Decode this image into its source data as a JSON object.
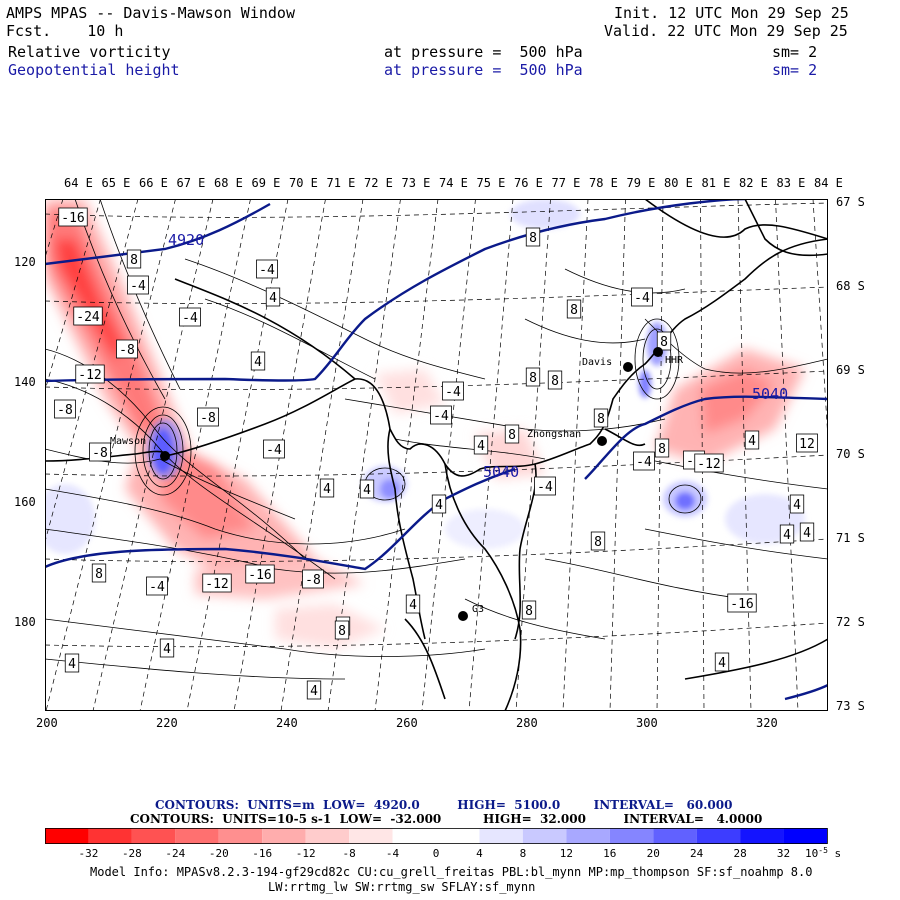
{
  "header": {
    "title": "AMPS MPAS -- Davis-Mawson Window",
    "fcst": "Fcst.    10 h",
    "init": "Init. 12 UTC Mon 29 Sep 25",
    "valid": "Valid. 22 UTC Mon 29 Sep 25",
    "field1": "Relative vorticity",
    "field1_level": "at pressure =  500 hPa",
    "field1_sm": "sm= 2",
    "field2": "Geopotential height",
    "field2_level": "at pressure =  500 hPa",
    "field2_sm": "sm= 2"
  },
  "map": {
    "lon_labels": [
      "64 E",
      "65 E",
      "66 E",
      "67 E",
      "68 E",
      "69 E",
      "70 E",
      "71 E",
      "72 E",
      "73 E",
      "74 E",
      "75 E",
      "76 E",
      "77 E",
      "78 E",
      "79 E",
      "80 E",
      "81 E",
      "82 E",
      "83 E",
      "84 E"
    ],
    "lat_labels": [
      "67 S",
      "68 S",
      "69 S",
      "70 S",
      "71 S",
      "72 S",
      "73 S"
    ],
    "x_ticks": [
      "200",
      "220",
      "240",
      "260",
      "280",
      "300",
      "320"
    ],
    "y_ticks": [
      "120",
      "140",
      "160",
      "180"
    ],
    "stations": [
      {
        "name": "Mawson"
      },
      {
        "name": "Davis"
      },
      {
        "name": "HHR"
      },
      {
        "name": "Zhongshan"
      },
      {
        "name": "G3"
      }
    ],
    "height_labels": [
      "4920",
      "5040",
      "5040"
    ],
    "vort_labels": [
      "-16",
      "-24",
      "-8",
      "-12",
      "-8",
      "-8",
      "-4",
      "-4",
      "-4",
      "-8",
      "8",
      "-4",
      "4",
      "4",
      "4",
      "4",
      "8",
      "8",
      "-4",
      "8",
      "8",
      "8",
      "8",
      "-4",
      "8",
      "4",
      "4",
      "-16",
      "-12",
      "-8",
      "4",
      "12",
      "4",
      "4",
      "4",
      "-4",
      "8",
      "8",
      "-4",
      "-16",
      "-12",
      "-4",
      "8",
      "4",
      "4",
      "8",
      "8",
      "4",
      "4",
      "-4",
      "8",
      "-4",
      "4",
      "4"
    ]
  },
  "colorbar": {
    "colors": [
      "#ff0000",
      "#ff3333",
      "#ff5252",
      "#ff7070",
      "#ff8f8f",
      "#ffadad",
      "#ffcccc",
      "#ffe6e6",
      "#ffffff",
      "#ffffff",
      "#e6e6ff",
      "#c9c9ff",
      "#a8a8ff",
      "#8585ff",
      "#6161ff",
      "#3d3dff",
      "#1414ff",
      "#0000ff"
    ],
    "tick_labels": [
      "-32",
      "-28",
      "-24",
      "-20",
      "-16",
      "-12",
      "-8",
      "-4",
      "0",
      "4",
      "8",
      "12",
      "16",
      "20",
      "24",
      "28",
      "32"
    ],
    "unit_label": "10",
    "unit_exp": "-5",
    "unit_suffix": "s"
  },
  "contours_info": {
    "line1": "CONTOURS:  UNITS=m  LOW=  4920.0         HIGH=  5100.0        INTERVAL=   60.000",
    "line2": "CONTOURS:  UNITS=10-5 s-1  LOW=  -32.000          HIGH=  32.000         INTERVAL=   4.0000"
  },
  "model_info": {
    "line1": "Model Info: MPASv8.2.3-194-gf29cd82c CU:cu_grell_freitas PBL:bl_mynn MP:mp_thompson SF:sf_noahmp 8.0",
    "line2": "LW:rrtmg_lw SW:rrtmg_sw SFLAY:sf_mynn"
  },
  "colors": {
    "height_contour": "#0b1a8a",
    "text_blue": "#1a1aa6",
    "coast": "#000000"
  }
}
